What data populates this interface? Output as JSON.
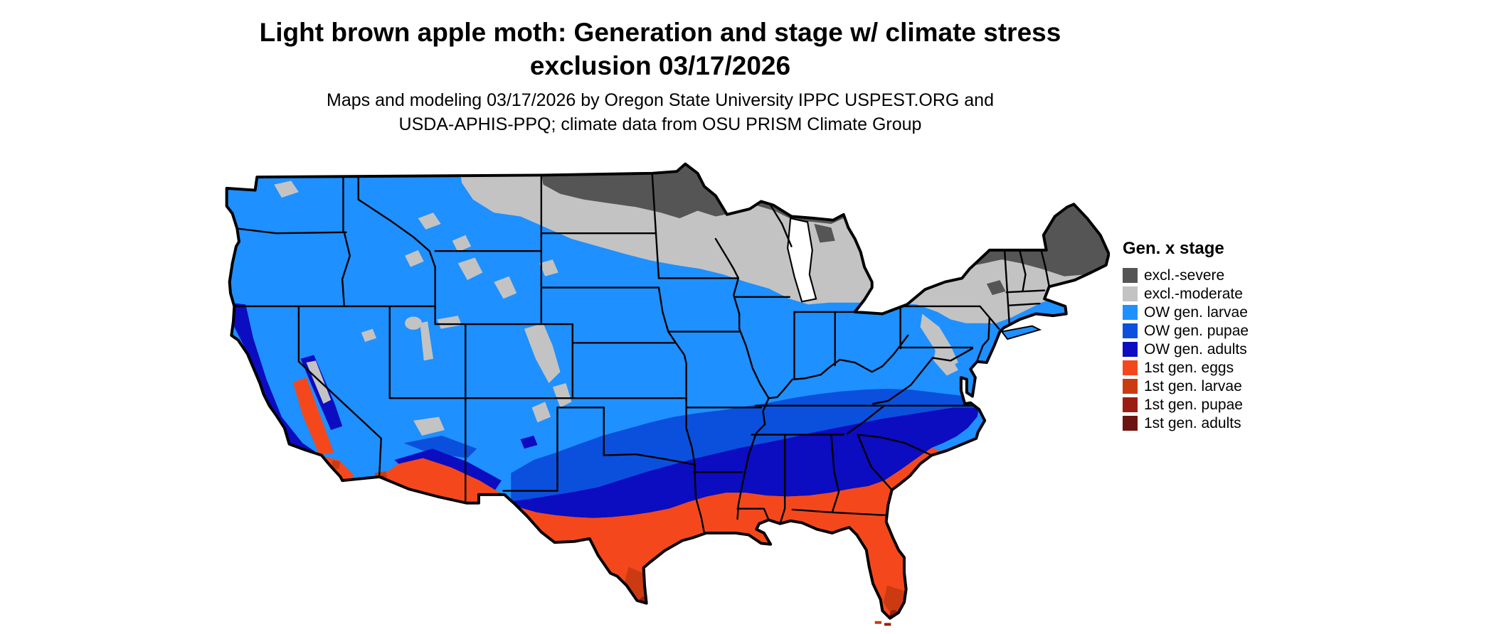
{
  "title": {
    "line1": "Light brown apple moth: Generation and stage w/ climate stress",
    "line2": "exclusion 03/17/2026"
  },
  "subtitle": {
    "line1": "Maps and modeling 03/17/2026 by Oregon State University IPPC USPEST.ORG and",
    "line2": "USDA-APHIS-PPQ; climate data from OSU PRISM Climate Group"
  },
  "legend": {
    "title": "Gen. x stage",
    "items": [
      {
        "key": "severe",
        "label": "excl.-severe",
        "color": "#555555"
      },
      {
        "key": "moderate",
        "label": "excl.-moderate",
        "color": "#c3c3c3"
      },
      {
        "key": "ow_larvae",
        "label": "OW gen. larvae",
        "color": "#1e90ff"
      },
      {
        "key": "ow_pupae",
        "label": "OW gen. pupae",
        "color": "#0a50dc"
      },
      {
        "key": "ow_adults",
        "label": "OW gen. adults",
        "color": "#0c0cc0"
      },
      {
        "key": "gen1_eggs",
        "label": "1st gen. eggs",
        "color": "#f4481c"
      },
      {
        "key": "gen1_larvae",
        "label": "1st gen. larvae",
        "color": "#cc3a12"
      },
      {
        "key": "gen1_pupae",
        "label": "1st gen. pupae",
        "color": "#9b1d12"
      },
      {
        "key": "gen1_adults",
        "label": "1st gen. adults",
        "color": "#6e1410"
      }
    ]
  }
}
